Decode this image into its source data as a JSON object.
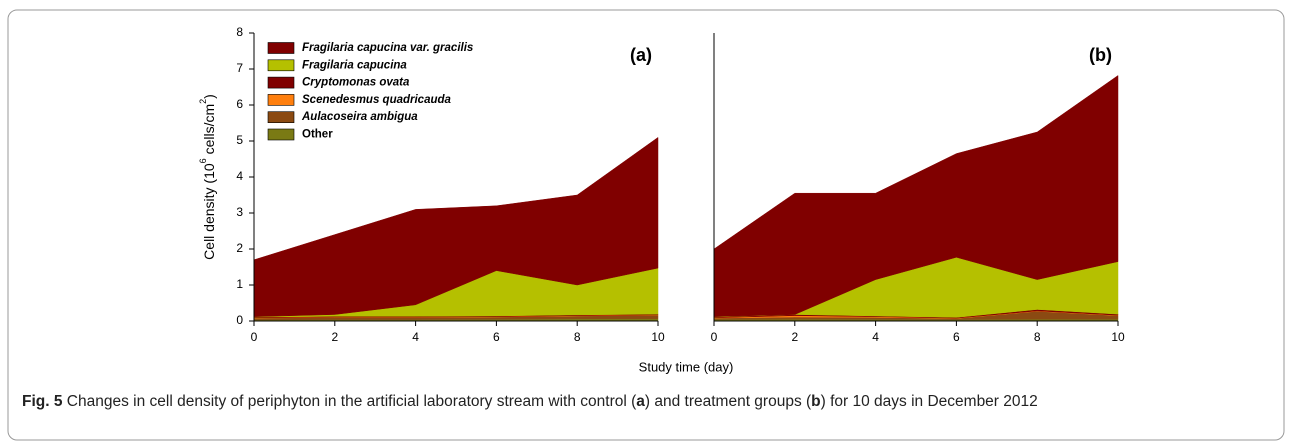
{
  "chart_data": [
    {
      "type": "area",
      "panel_label": "(a)",
      "legend": "upper left",
      "x": [
        0,
        2,
        4,
        6,
        8,
        10
      ],
      "xlim": [
        0,
        10
      ],
      "xticks": [
        0,
        2,
        4,
        6,
        8,
        10
      ],
      "ylim": [
        0,
        8
      ],
      "yticks": [
        0,
        1,
        2,
        3,
        4,
        5,
        6,
        7,
        8
      ],
      "series": [
        {
          "name": "Other",
          "color": "#7a7a14",
          "values": [
            0.03,
            0.04,
            0.04,
            0.05,
            0.06,
            0.06
          ]
        },
        {
          "name": "Aulacoseira ambigua",
          "color": "#8b4a12",
          "values": [
            0.05,
            0.06,
            0.06,
            0.06,
            0.08,
            0.1
          ]
        },
        {
          "name": "Scenedesmus quadricauda",
          "color": "#ff7f0e",
          "values": [
            0.01,
            0.01,
            0.01,
            0.01,
            0.01,
            0.01
          ]
        },
        {
          "name": "Cryptomonas ovata",
          "color": "#800000",
          "values": [
            0.02,
            0.02,
            0.02,
            0.02,
            0.02,
            0.02
          ]
        },
        {
          "name": "Fragilaria capucina",
          "color": "#b5c000",
          "values": [
            0.01,
            0.05,
            0.32,
            1.26,
            0.83,
            1.28
          ]
        },
        {
          "name": "Fragilaria capucina var. gracilis",
          "color": "#800000",
          "values": [
            1.58,
            2.22,
            2.65,
            1.8,
            2.5,
            3.63
          ]
        }
      ]
    },
    {
      "type": "area",
      "panel_label": "(b)",
      "x": [
        0,
        2,
        4,
        6,
        8,
        10
      ],
      "xlim": [
        0,
        10
      ],
      "xticks": [
        0,
        2,
        4,
        6,
        8,
        10
      ],
      "ylim": [
        0,
        8
      ],
      "series": [
        {
          "color": "#7a7a14",
          "values": [
            0.04,
            0.05,
            0.05,
            0.04,
            0.05,
            0.05
          ]
        },
        {
          "color": "#8b4a12",
          "values": [
            0.04,
            0.06,
            0.05,
            0.03,
            0.22,
            0.1
          ]
        },
        {
          "color": "#ff7f0e",
          "values": [
            0.01,
            0.04,
            0.02,
            0.01,
            0.01,
            0.01
          ]
        },
        {
          "color": "#800000",
          "values": [
            0.02,
            0.03,
            0.02,
            0.02,
            0.04,
            0.03
          ]
        },
        {
          "color": "#b5c000",
          "values": [
            0.01,
            0.0,
            1.01,
            1.67,
            0.83,
            1.46
          ]
        },
        {
          "color": "#800000",
          "values": [
            1.88,
            3.37,
            2.4,
            2.88,
            4.1,
            5.17
          ]
        }
      ]
    }
  ],
  "y_label": [
    "Cell density (10",
    "6",
    " cells/cm",
    "2",
    ")"
  ],
  "x_label": "Study time (day)",
  "caption": {
    "label": "Fig. 5",
    "parts": [
      " Changes in cell density of periphyton in the artificial laboratory stream with control (",
      "a",
      ") and treatment groups (",
      "b",
      ") for 10 days in December 2012"
    ]
  }
}
